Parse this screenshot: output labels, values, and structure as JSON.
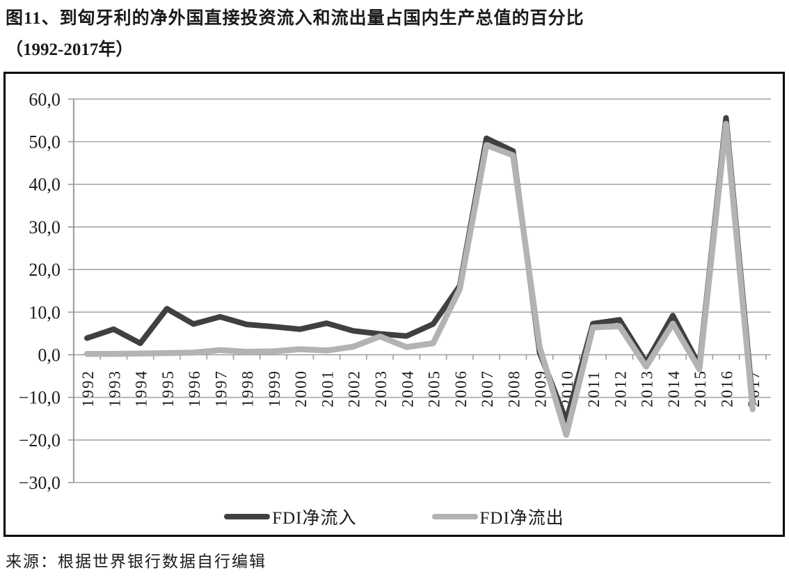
{
  "figure": {
    "title_line1": "图11、到匈牙利的净外国直接投资流入和流出量占国内生产总值的百分比",
    "title_line2": "（1992-2017年）",
    "source": "来源：根据世界银行数据自行编辑"
  },
  "chart_data": {
    "type": "line",
    "title": "到匈牙利的净外国直接投资流入和流出量占国内生产总值的百分比（1992-2017年）",
    "xlabel": "",
    "ylabel": "",
    "categories": [
      "1992",
      "1993",
      "1994",
      "1995",
      "1996",
      "1997",
      "1998",
      "1999",
      "2000",
      "2001",
      "2002",
      "2003",
      "2004",
      "2005",
      "2006",
      "2007",
      "2008",
      "2009",
      "2010",
      "2011",
      "2012",
      "2013",
      "2014",
      "2015",
      "2016",
      "2017"
    ],
    "series": [
      {
        "name": "FDI净流入",
        "color": "#404040",
        "values": [
          3.9,
          6.0,
          2.7,
          10.8,
          7.2,
          8.9,
          7.1,
          6.6,
          6.0,
          7.4,
          5.6,
          4.9,
          4.4,
          7.2,
          16.2,
          50.8,
          47.8,
          0.5,
          -15.5,
          7.3,
          8.2,
          -1.8,
          9.2,
          -2.5,
          55.6,
          -11.0
        ]
      },
      {
        "name": "FDI净流出",
        "color": "#b3b3b3",
        "values": [
          0.2,
          0.2,
          0.3,
          0.4,
          0.5,
          1.1,
          0.7,
          0.8,
          1.3,
          1.0,
          1.9,
          4.3,
          1.8,
          2.7,
          15.4,
          49.2,
          46.8,
          1.8,
          -18.8,
          6.4,
          6.7,
          -2.8,
          7.3,
          -3.4,
          54.2,
          -12.8
        ]
      }
    ],
    "ylim": [
      -30,
      60
    ],
    "ytick_values": [
      60,
      50,
      40,
      30,
      20,
      10,
      0,
      -10,
      -20,
      -30
    ],
    "ytick_labels": [
      "60,0",
      "50,0",
      "40,0",
      "30,0",
      "20,0",
      "10,0",
      "0,0",
      "−10,0",
      "−20,0",
      "−30,0"
    ],
    "grid": "horizontal",
    "legend_position": "bottom",
    "axis_color": "#9a9a9a",
    "grid_color": "#a6a6a6",
    "tick_label_color": "#1a1a1a"
  }
}
